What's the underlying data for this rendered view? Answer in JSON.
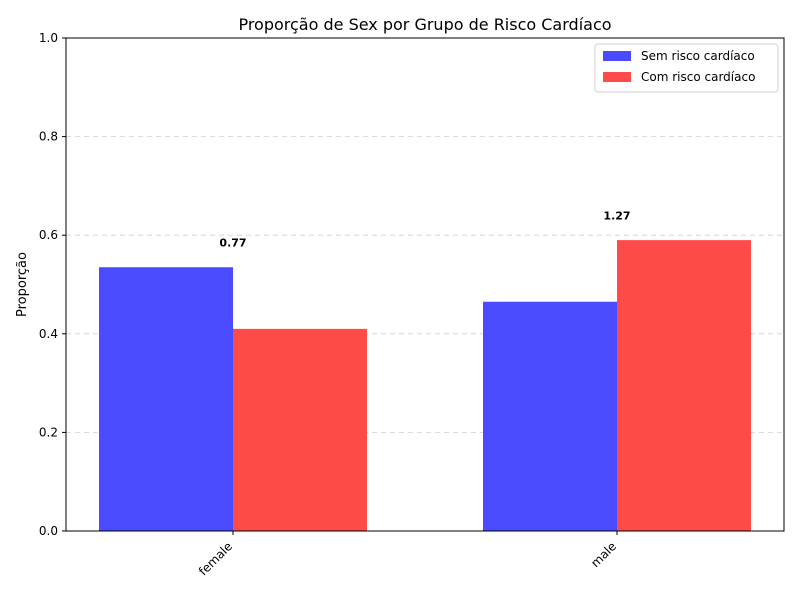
{
  "chart_data": {
    "type": "bar",
    "title": "Proporção de Sex por Grupo de Risco Cardíaco",
    "xlabel": "",
    "ylabel": "Proporção",
    "categories": [
      "female",
      "male"
    ],
    "series": [
      {
        "name": "Sem risco cardíaco",
        "values": [
          0.535,
          0.465
        ],
        "color": "#4a4aff"
      },
      {
        "name": "Com risco cardíaco",
        "values": [
          0.41,
          0.59
        ],
        "color": "#ff4a4a"
      }
    ],
    "annotations": [
      "0.77",
      "1.27"
    ],
    "ylim": [
      0,
      1.0
    ],
    "yticks": [
      "0.0",
      "0.2",
      "0.4",
      "0.6",
      "0.8",
      "1.0"
    ],
    "grid": "y-dashed",
    "legend_position": "top-right"
  }
}
